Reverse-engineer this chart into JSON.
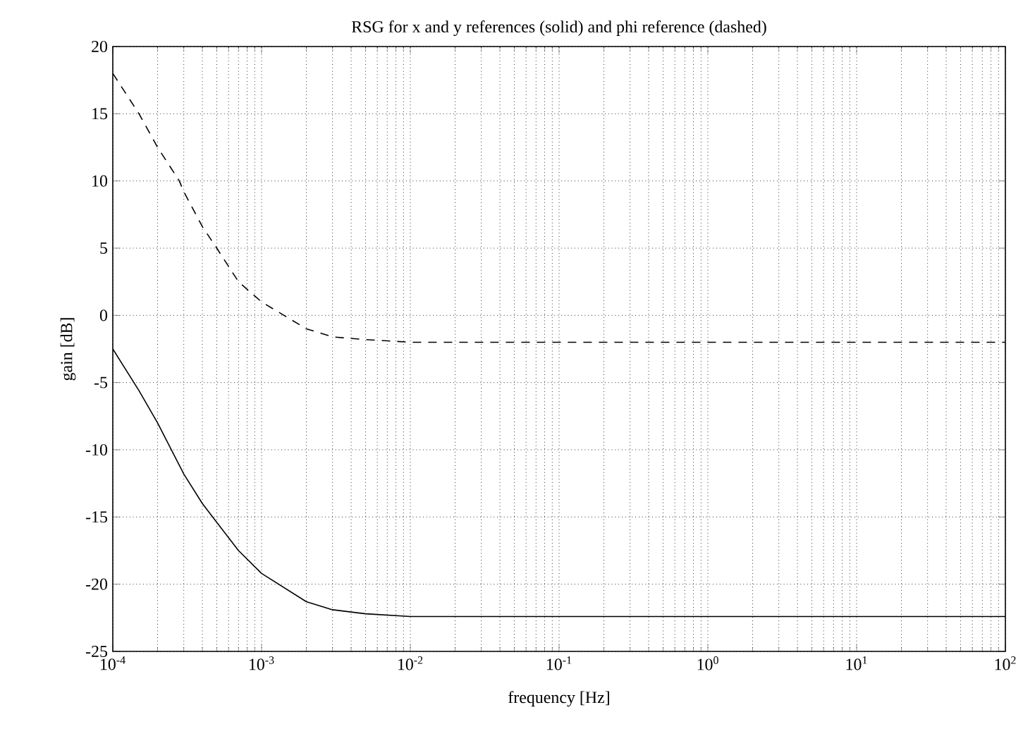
{
  "chart_data": {
    "type": "line",
    "title": "RSG for x and y references (solid) and phi reference (dashed)",
    "xlabel": "frequency [Hz]",
    "ylabel": "gain [dB]",
    "log": "x",
    "grid": true,
    "marker": "none",
    "xlim": [
      0.0001,
      100
    ],
    "ylim": [
      -25,
      20
    ],
    "xticks": [
      {
        "value": 0.0001,
        "label": "10$^{-4}$"
      },
      {
        "value": 0.001,
        "label": "10$^{-3}$"
      },
      {
        "value": 0.01,
        "label": "10$^{-2}$"
      },
      {
        "value": 0.1,
        "label": "10$^{-1}$"
      },
      {
        "value": 1,
        "label": "10$^{0}$"
      },
      {
        "value": 10,
        "label": "10$^{1}$"
      },
      {
        "value": 100,
        "label": "10$^{2}$"
      }
    ],
    "yticks": [
      -25,
      -20,
      -15,
      -10,
      -5,
      0,
      5,
      10,
      15,
      20
    ],
    "series": [
      {
        "color": "#000000",
        "line_style": "solid",
        "x": [
          0.0001,
          0.00015,
          0.0002,
          0.0003,
          0.0004,
          0.0005,
          0.0007,
          0.001,
          0.002,
          0.003,
          0.005,
          0.01,
          0.1,
          1,
          10,
          100
        ],
        "values": [
          -2.5,
          -5.6,
          -8.0,
          -11.8,
          -14.0,
          -15.4,
          -17.5,
          -19.2,
          -21.3,
          -21.9,
          -22.2,
          -22.4,
          -22.4,
          -22.4,
          -22.4,
          -22.4
        ]
      },
      {
        "color": "#000000",
        "line_style": "dashed",
        "x": [
          0.0001,
          0.00015,
          0.0002,
          0.00028,
          0.0003,
          0.0004,
          0.0005,
          0.0007,
          0.001,
          0.002,
          0.003,
          0.005,
          0.01,
          0.1,
          1,
          10,
          100
        ],
        "values": [
          18.0,
          15.0,
          12.5,
          10.0,
          9.2,
          6.6,
          5.0,
          2.5,
          1.0,
          -1.0,
          -1.6,
          -1.8,
          -2.0,
          -2.0,
          -2.0,
          -2.0,
          -2.0
        ]
      }
    ]
  }
}
